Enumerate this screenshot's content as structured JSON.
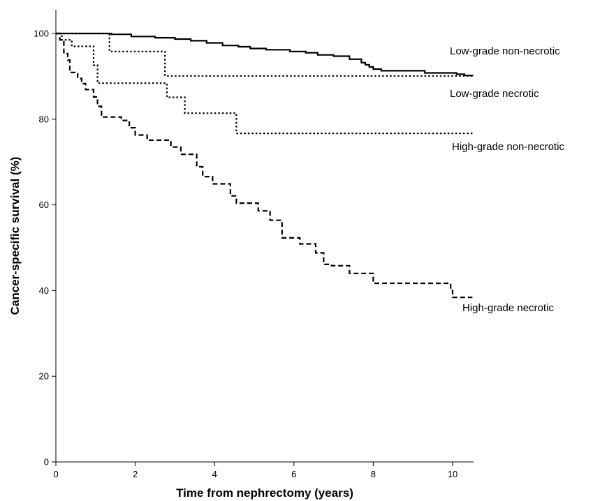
{
  "chart_data": {
    "type": "line",
    "step": true,
    "title": "",
    "xlabel": "Time from nephrectomy (years)",
    "ylabel": "Cancer-specific survival (%)",
    "xlim": [
      0,
      10.5
    ],
    "ylim": [
      0,
      105
    ],
    "xticks": [
      0,
      2,
      4,
      6,
      8,
      10
    ],
    "yticks": [
      0,
      20,
      40,
      60,
      80,
      100
    ],
    "grid": false,
    "legend": "none",
    "series": [
      {
        "name": "Low-grade non-necrotic",
        "line_style": "solid",
        "color": "#000000",
        "points": [
          [
            0,
            100
          ],
          [
            1.4,
            99.8
          ],
          [
            1.9,
            99.3
          ],
          [
            2.5,
            99.0
          ],
          [
            3.0,
            98.7
          ],
          [
            3.4,
            98.3
          ],
          [
            3.8,
            97.8
          ],
          [
            4.2,
            97.2
          ],
          [
            4.6,
            96.9
          ],
          [
            4.9,
            96.5
          ],
          [
            5.3,
            96.2
          ],
          [
            5.9,
            95.8
          ],
          [
            6.3,
            95.5
          ],
          [
            6.6,
            95.0
          ],
          [
            7.0,
            94.7
          ],
          [
            7.4,
            94.0
          ],
          [
            7.7,
            93.2
          ],
          [
            7.8,
            92.7
          ],
          [
            7.9,
            92.2
          ],
          [
            8.0,
            91.7
          ],
          [
            8.2,
            91.3
          ],
          [
            9.3,
            90.8
          ],
          [
            10.1,
            90.5
          ],
          [
            10.3,
            90.2
          ],
          [
            10.5,
            90.0
          ]
        ]
      },
      {
        "name": "Low-grade necrotic",
        "line_style": "dotted",
        "color": "#000000",
        "points": [
          [
            0,
            100
          ],
          [
            1.35,
            95.8
          ],
          [
            2.75,
            90.1
          ],
          [
            10.5,
            90.1
          ]
        ]
      },
      {
        "name": "High-grade non-necrotic",
        "line_style": "dotted",
        "color": "#000000",
        "points": [
          [
            0,
            100
          ],
          [
            0.15,
            98.5
          ],
          [
            0.4,
            97.0
          ],
          [
            0.95,
            92.6
          ],
          [
            1.05,
            88.4
          ],
          [
            2.8,
            85.1
          ],
          [
            3.25,
            81.4
          ],
          [
            4.55,
            76.7
          ],
          [
            10.5,
            76.7
          ]
        ]
      },
      {
        "name": "High-grade necrotic",
        "line_style": "dashed",
        "color": "#000000",
        "points": [
          [
            0,
            100
          ],
          [
            0.1,
            98.5
          ],
          [
            0.2,
            95.3
          ],
          [
            0.3,
            93.8
          ],
          [
            0.35,
            90.9
          ],
          [
            0.55,
            89.5
          ],
          [
            0.65,
            88.3
          ],
          [
            0.75,
            86.9
          ],
          [
            0.95,
            85.2
          ],
          [
            1.05,
            83.0
          ],
          [
            1.15,
            80.5
          ],
          [
            1.65,
            79.7
          ],
          [
            1.85,
            78.0
          ],
          [
            2.0,
            76.3
          ],
          [
            2.3,
            75.1
          ],
          [
            2.9,
            73.5
          ],
          [
            3.15,
            71.8
          ],
          [
            3.55,
            68.9
          ],
          [
            3.7,
            66.6
          ],
          [
            3.95,
            64.9
          ],
          [
            4.4,
            62.1
          ],
          [
            4.55,
            60.4
          ],
          [
            5.1,
            58.6
          ],
          [
            5.4,
            56.4
          ],
          [
            5.7,
            52.3
          ],
          [
            6.15,
            50.9
          ],
          [
            6.55,
            48.8
          ],
          [
            6.75,
            46.1
          ],
          [
            6.95,
            45.8
          ],
          [
            7.4,
            44.0
          ],
          [
            8.0,
            41.7
          ],
          [
            9.95,
            40.0
          ],
          [
            10.0,
            38.4
          ],
          [
            10.5,
            38.4
          ]
        ]
      }
    ]
  }
}
